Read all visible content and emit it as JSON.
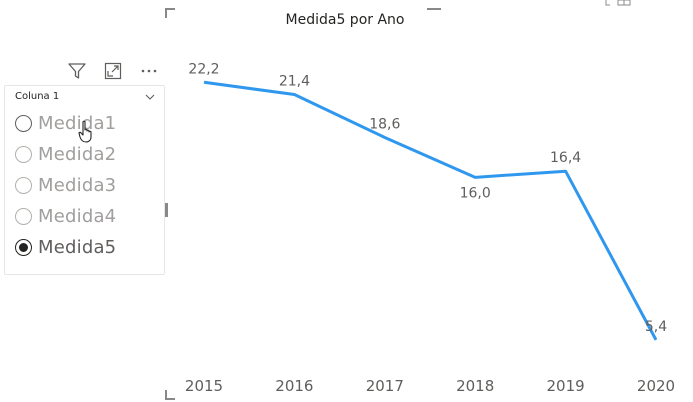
{
  "slicer": {
    "header": "Coluna 1",
    "icons": [
      "filter-icon",
      "focus-mode-icon",
      "more-options-icon",
      "chevron-down-icon"
    ],
    "items": [
      {
        "label": "Medida1",
        "selected": false,
        "hovered": true
      },
      {
        "label": "Medida2",
        "selected": false,
        "hovered": false
      },
      {
        "label": "Medida3",
        "selected": false,
        "hovered": false
      },
      {
        "label": "Medida4",
        "selected": false,
        "hovered": false
      },
      {
        "label": "Medida5",
        "selected": true,
        "hovered": false
      }
    ]
  },
  "chart_data": {
    "type": "line",
    "title": "Medida5 por Ano",
    "x": [
      "2015",
      "2016",
      "2017",
      "2018",
      "2019",
      "2020"
    ],
    "series": [
      {
        "values": [
          22.2,
          21.4,
          18.6,
          16.0,
          16.4,
          5.4
        ]
      }
    ],
    "data_labels": [
      "22,2",
      "21,4",
      "18,6",
      "16,0",
      "16,4",
      "5,4"
    ],
    "ylim": [
      5,
      23
    ],
    "grid": false,
    "color": "#2f98ee"
  }
}
